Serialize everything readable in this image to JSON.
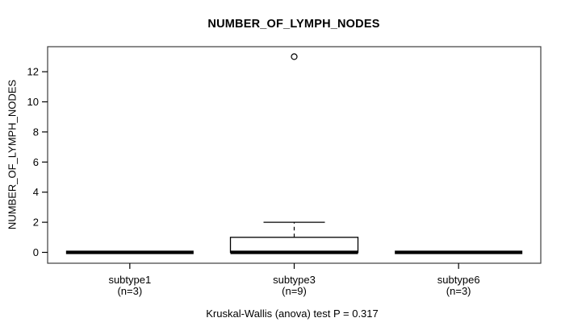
{
  "chart_data": {
    "type": "boxplot",
    "title": "NUMBER_OF_LYMPH_NODES",
    "ylabel": "NUMBER_OF_LYMPH_NODES",
    "xlabel": "",
    "yticks": [
      0,
      2,
      4,
      6,
      8,
      10,
      12
    ],
    "ylim": [
      -0.75,
      13.7
    ],
    "grid": false,
    "legend": false,
    "categories": [
      "subtype1",
      "subtype3",
      "subtype6"
    ],
    "category_sublabels": [
      "(n=3)",
      "(n=9)",
      "(n=3)"
    ],
    "series": [
      {
        "name": "subtype1",
        "n": 3,
        "whisker_low": 0,
        "q1": 0,
        "median": 0,
        "q3": 0,
        "whisker_high": 0,
        "outliers": []
      },
      {
        "name": "subtype3",
        "n": 9,
        "whisker_low": 0,
        "q1": 0,
        "median": 0,
        "q3": 1,
        "whisker_high": 2,
        "outliers": [
          13
        ]
      },
      {
        "name": "subtype6",
        "n": 3,
        "whisker_low": 0,
        "q1": 0,
        "median": 0,
        "q3": 0,
        "whisker_high": 0,
        "outliers": []
      }
    ],
    "annotation": "Kruskal-Wallis (anova) test P = 0.317"
  },
  "colors": {
    "background": "#ffffff",
    "frame": "#3c3c3c",
    "text": "#000000",
    "box_stroke": "#000000",
    "box_fill": "#ffffff"
  }
}
